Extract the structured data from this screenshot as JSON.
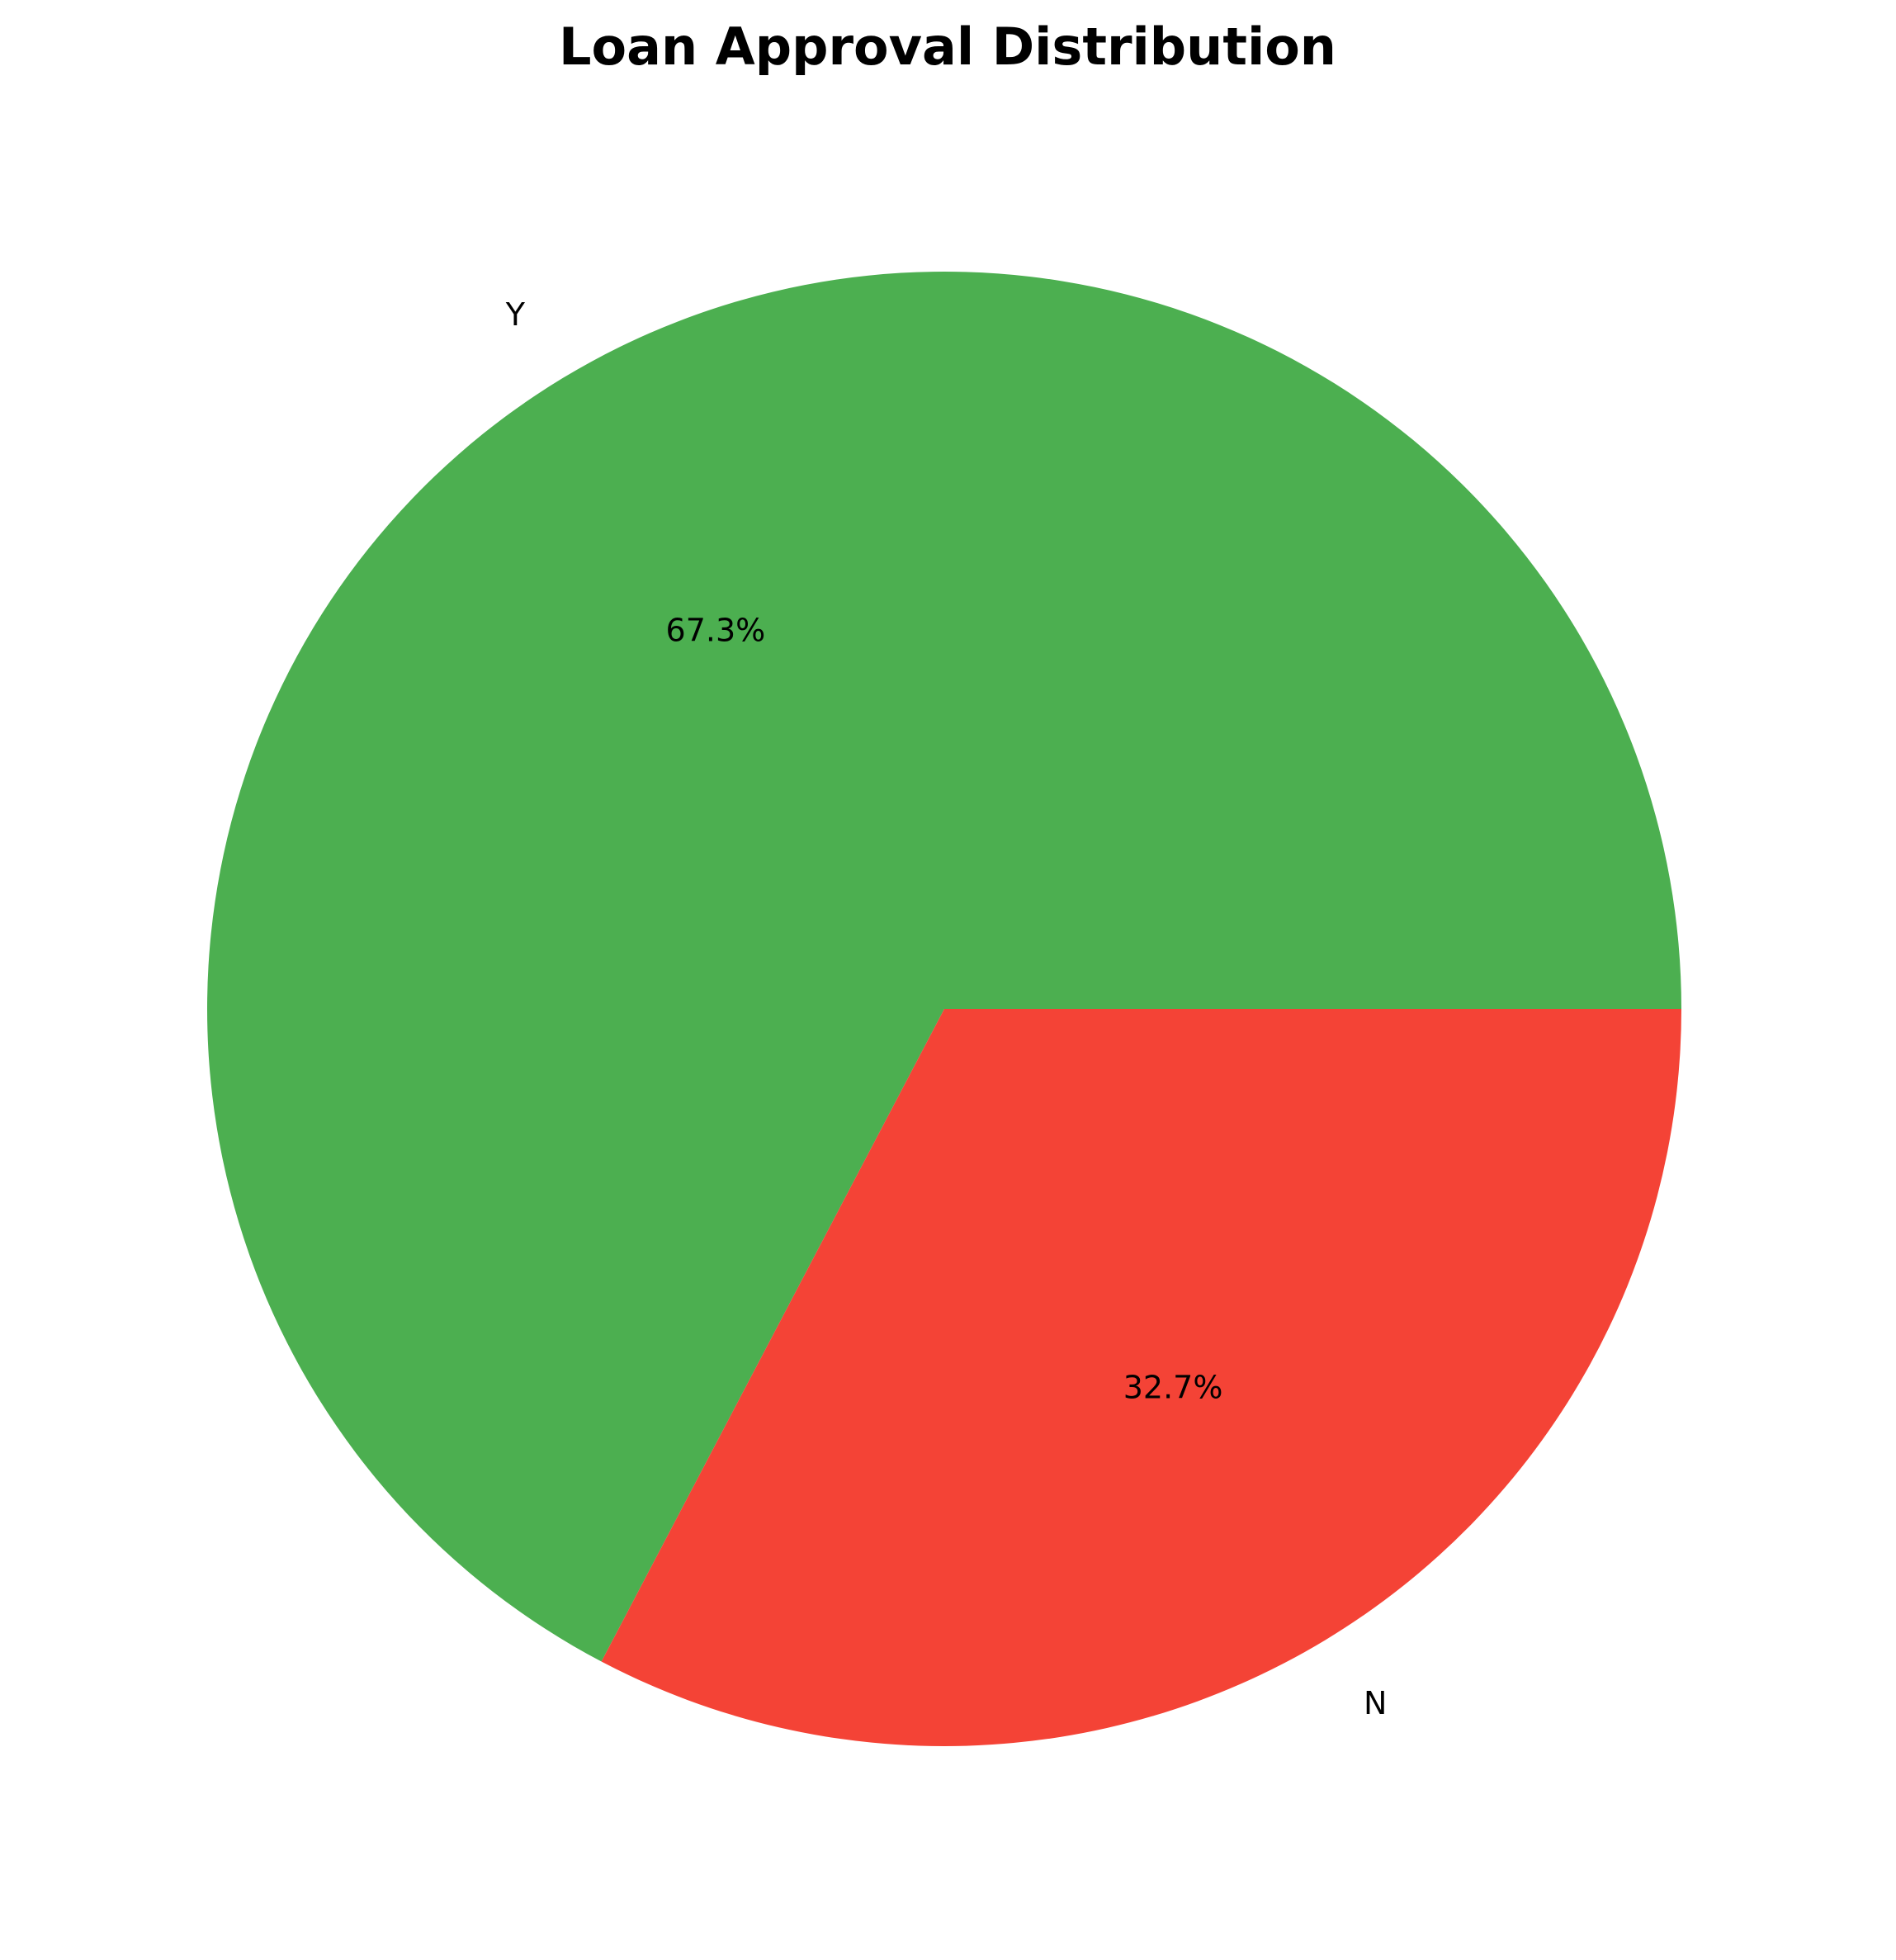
{
  "chart_data": {
    "type": "pie",
    "title": "Loan Approval Distribution",
    "slices": [
      {
        "label": "Y",
        "value": 67.3,
        "pct_label": "67.3%",
        "color": "#4caf50"
      },
      {
        "label": "N",
        "value": 32.7,
        "pct_label": "32.7%",
        "color": "#f44336"
      }
    ],
    "start_angle_deg": 0,
    "direction": "counterclockwise",
    "legend": "none"
  }
}
